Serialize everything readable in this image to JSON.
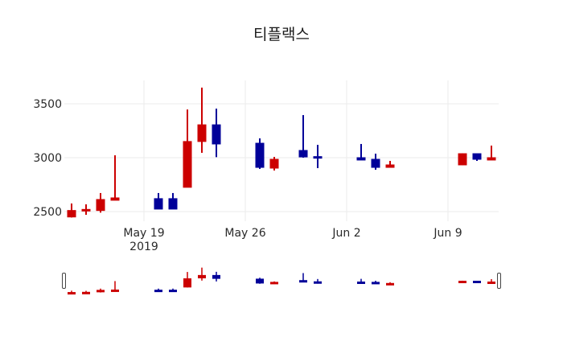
{
  "chart_data": {
    "type": "candlestick",
    "title": "티플랙스",
    "xlabel": "",
    "ylabel": "",
    "ylim": [
      2440,
      3700
    ],
    "yticks": [
      2500,
      3000,
      3500
    ],
    "xticks": [
      {
        "label": "May 19",
        "sublabel": "2019",
        "date": "2019-05-19"
      },
      {
        "label": "May 26",
        "sublabel": "",
        "date": "2019-05-26"
      },
      {
        "label": "Jun 2",
        "sublabel": "",
        "date": "2019-06-02"
      },
      {
        "label": "Jun 9",
        "sublabel": "",
        "date": "2019-06-09"
      }
    ],
    "grid": true,
    "increasing_color": "#cc0000",
    "decreasing_color": "#000099",
    "rangeslider": true,
    "candles": [
      {
        "date": "2019-05-14",
        "open": 2450,
        "high": 2575,
        "low": 2445,
        "close": 2510
      },
      {
        "date": "2019-05-15",
        "open": 2505,
        "high": 2567,
        "low": 2470,
        "close": 2520
      },
      {
        "date": "2019-05-16",
        "open": 2510,
        "high": 2672,
        "low": 2490,
        "close": 2612
      },
      {
        "date": "2019-05-17",
        "open": 2605,
        "high": 3022,
        "low": 2605,
        "close": 2627
      },
      {
        "date": "2019-05-20",
        "open": 2620,
        "high": 2672,
        "low": 2523,
        "close": 2523
      },
      {
        "date": "2019-05-21",
        "open": 2620,
        "high": 2672,
        "low": 2523,
        "close": 2523
      },
      {
        "date": "2019-05-22",
        "open": 2725,
        "high": 3447,
        "low": 2725,
        "close": 3150
      },
      {
        "date": "2019-05-23",
        "open": 3150,
        "high": 3650,
        "low": 3045,
        "close": 3305
      },
      {
        "date": "2019-05-24",
        "open": 3305,
        "high": 3455,
        "low": 3005,
        "close": 3127
      },
      {
        "date": "2019-05-27",
        "open": 3134,
        "high": 3179,
        "low": 2896,
        "close": 2910
      },
      {
        "date": "2019-05-28",
        "open": 2903,
        "high": 3007,
        "low": 2881,
        "close": 2985
      },
      {
        "date": "2019-05-30",
        "open": 3067,
        "high": 3395,
        "low": 3000,
        "close": 3007
      },
      {
        "date": "2019-05-31",
        "open": 3010,
        "high": 3119,
        "low": 2903,
        "close": 3000
      },
      {
        "date": "2019-06-03",
        "open": 3000,
        "high": 3127,
        "low": 2978,
        "close": 2978
      },
      {
        "date": "2019-06-04",
        "open": 2985,
        "high": 3037,
        "low": 2888,
        "close": 2910
      },
      {
        "date": "2019-06-05",
        "open": 2910,
        "high": 2970,
        "low": 2910,
        "close": 2933
      },
      {
        "date": "2019-06-10",
        "open": 2933,
        "high": 3040,
        "low": 2930,
        "close": 3037
      },
      {
        "date": "2019-06-11",
        "open": 3037,
        "high": 3037,
        "low": 2970,
        "close": 2985
      },
      {
        "date": "2019-06-12",
        "open": 2978,
        "high": 3112,
        "low": 2978,
        "close": 3000
      }
    ]
  }
}
